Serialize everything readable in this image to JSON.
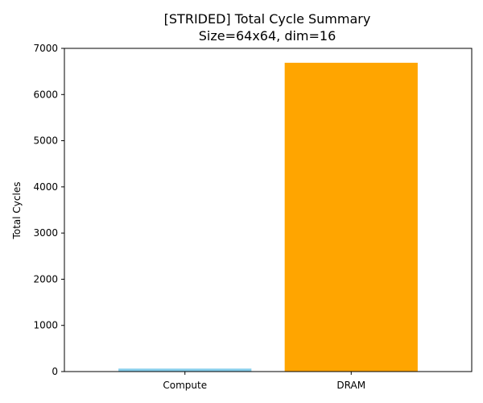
{
  "chart_data": {
    "type": "bar",
    "title": "[STRIDED] Total Cycle Summary",
    "subtitle": "Size=64x64, dim=16",
    "xlabel": "",
    "ylabel": "Total Cycles",
    "categories": [
      "Compute",
      "DRAM"
    ],
    "values": [
      64,
      6688
    ],
    "colors": [
      "#87ceeb",
      "#ffa500"
    ],
    "ylim": [
      0,
      7000
    ],
    "yticks": [
      0,
      1000,
      2000,
      3000,
      4000,
      5000,
      6000,
      7000
    ],
    "grid": false,
    "legend": "none"
  }
}
